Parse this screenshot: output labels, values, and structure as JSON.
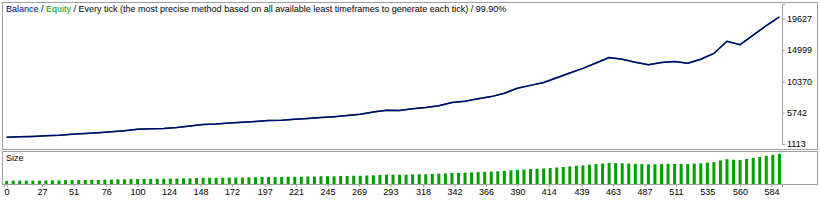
{
  "chart_data": [
    {
      "type": "line",
      "title": "Every tick (the most precise method based on all available least timeframes to generate each tick)",
      "subtitle": "99.90%",
      "separator": " / ",
      "x": [
        0,
        10,
        20,
        30,
        40,
        50,
        60,
        70,
        80,
        90,
        100,
        110,
        120,
        130,
        140,
        150,
        160,
        170,
        180,
        190,
        200,
        210,
        220,
        230,
        240,
        250,
        260,
        270,
        280,
        290,
        300,
        310,
        320,
        330,
        340,
        350,
        360,
        370,
        380,
        390,
        400,
        410,
        420,
        430,
        440,
        450,
        460,
        470,
        480,
        490,
        500,
        510,
        520,
        530,
        540,
        550,
        560,
        570,
        580,
        590
      ],
      "series": [
        {
          "name": "Balance",
          "color": "#000080",
          "values": [
            2125,
            2180,
            2240,
            2330,
            2420,
            2560,
            2650,
            2780,
            2920,
            3080,
            3280,
            3350,
            3420,
            3560,
            3780,
            4005,
            4080,
            4210,
            4330,
            4450,
            4580,
            4640,
            4760,
            4890,
            5020,
            5160,
            5340,
            5520,
            5830,
            6100,
            6050,
            6310,
            6520,
            6780,
            7240,
            7420,
            7810,
            8120,
            8610,
            9355,
            9780,
            10220,
            10900,
            11620,
            12300,
            13100,
            13900,
            13650,
            13200,
            12850,
            13150,
            13300,
            13050,
            13650,
            14500,
            16300,
            15800,
            17200,
            18600,
            19910
          ]
        },
        {
          "name": "Equity",
          "color": "#00a000",
          "values": [
            2125,
            2180,
            2240,
            2330,
            2420,
            2560,
            2650,
            2780,
            2920,
            3080,
            3280,
            3350,
            3420,
            3560,
            3780,
            4005,
            4080,
            4210,
            4330,
            4450,
            4580,
            4640,
            4760,
            4890,
            5020,
            5160,
            5340,
            5520,
            5830,
            6100,
            6050,
            6310,
            6520,
            6780,
            7240,
            7420,
            7810,
            8120,
            8610,
            9355,
            9780,
            10220,
            10900,
            11620,
            12300,
            13100,
            13900,
            13650,
            13200,
            12850,
            13150,
            13300,
            13050,
            13650,
            14500,
            16300,
            15800,
            17200,
            18600,
            19910
          ]
        }
      ],
      "xlim": [
        -2,
        592
      ],
      "ylim": [
        1113,
        21814
      ],
      "yticks": [
        1113,
        5742,
        10370,
        14999,
        19627
      ],
      "grid": false,
      "tick_labels": "y"
    },
    {
      "type": "bar",
      "title": "Size",
      "x": [
        0,
        5,
        10,
        15,
        20,
        25,
        30,
        35,
        40,
        45,
        50,
        55,
        60,
        65,
        70,
        75,
        80,
        85,
        90,
        95,
        100,
        105,
        110,
        115,
        120,
        125,
        130,
        135,
        140,
        145,
        150,
        155,
        160,
        165,
        170,
        175,
        180,
        185,
        190,
        195,
        200,
        205,
        210,
        215,
        220,
        225,
        230,
        235,
        240,
        245,
        250,
        255,
        260,
        265,
        270,
        275,
        280,
        285,
        290,
        295,
        300,
        305,
        310,
        315,
        320,
        325,
        330,
        335,
        340,
        345,
        350,
        355,
        360,
        365,
        370,
        375,
        380,
        385,
        390,
        395,
        400,
        405,
        410,
        415,
        420,
        425,
        430,
        435,
        440,
        445,
        450,
        455,
        460,
        465,
        470,
        475,
        480,
        485,
        490,
        495,
        500,
        505,
        510,
        515,
        520,
        525,
        530,
        535,
        540,
        545,
        550,
        555,
        560,
        565,
        570,
        575,
        580,
        585,
        590
      ],
      "values": [
        0.12,
        0.13,
        0.13,
        0.13,
        0.13,
        0.13,
        0.14,
        0.14,
        0.14,
        0.15,
        0.15,
        0.15,
        0.16,
        0.16,
        0.16,
        0.17,
        0.17,
        0.18,
        0.18,
        0.19,
        0.19,
        0.2,
        0.2,
        0.2,
        0.2,
        0.21,
        0.21,
        0.22,
        0.22,
        0.23,
        0.24,
        0.24,
        0.24,
        0.24,
        0.25,
        0.25,
        0.25,
        0.26,
        0.26,
        0.27,
        0.27,
        0.27,
        0.27,
        0.28,
        0.28,
        0.28,
        0.29,
        0.29,
        0.3,
        0.3,
        0.3,
        0.31,
        0.31,
        0.32,
        0.32,
        0.33,
        0.34,
        0.35,
        0.36,
        0.36,
        0.36,
        0.36,
        0.37,
        0.38,
        0.38,
        0.39,
        0.4,
        0.41,
        0.43,
        0.43,
        0.44,
        0.45,
        0.46,
        0.47,
        0.48,
        0.49,
        0.51,
        0.53,
        0.55,
        0.56,
        0.58,
        0.59,
        0.6,
        0.62,
        0.64,
        0.66,
        0.68,
        0.7,
        0.72,
        0.75,
        0.77,
        0.79,
        0.82,
        0.81,
        0.8,
        0.79,
        0.78,
        0.77,
        0.76,
        0.76,
        0.77,
        0.78,
        0.78,
        0.78,
        0.77,
        0.79,
        0.8,
        0.83,
        0.85,
        0.91,
        0.96,
        0.94,
        0.93,
        0.97,
        1.01,
        1.05,
        1.09,
        1.13,
        1.17
      ],
      "color": "#00a000",
      "xlim": [
        -2,
        592
      ],
      "ylim": [
        0,
        1.2
      ],
      "xticks": [
        0,
        27,
        51,
        76,
        100,
        124,
        148,
        172,
        197,
        221,
        245,
        269,
        293,
        318,
        342,
        366,
        390,
        414,
        439,
        463,
        487,
        511,
        535,
        560,
        584
      ],
      "grid": false,
      "tick_labels": "x"
    }
  ]
}
